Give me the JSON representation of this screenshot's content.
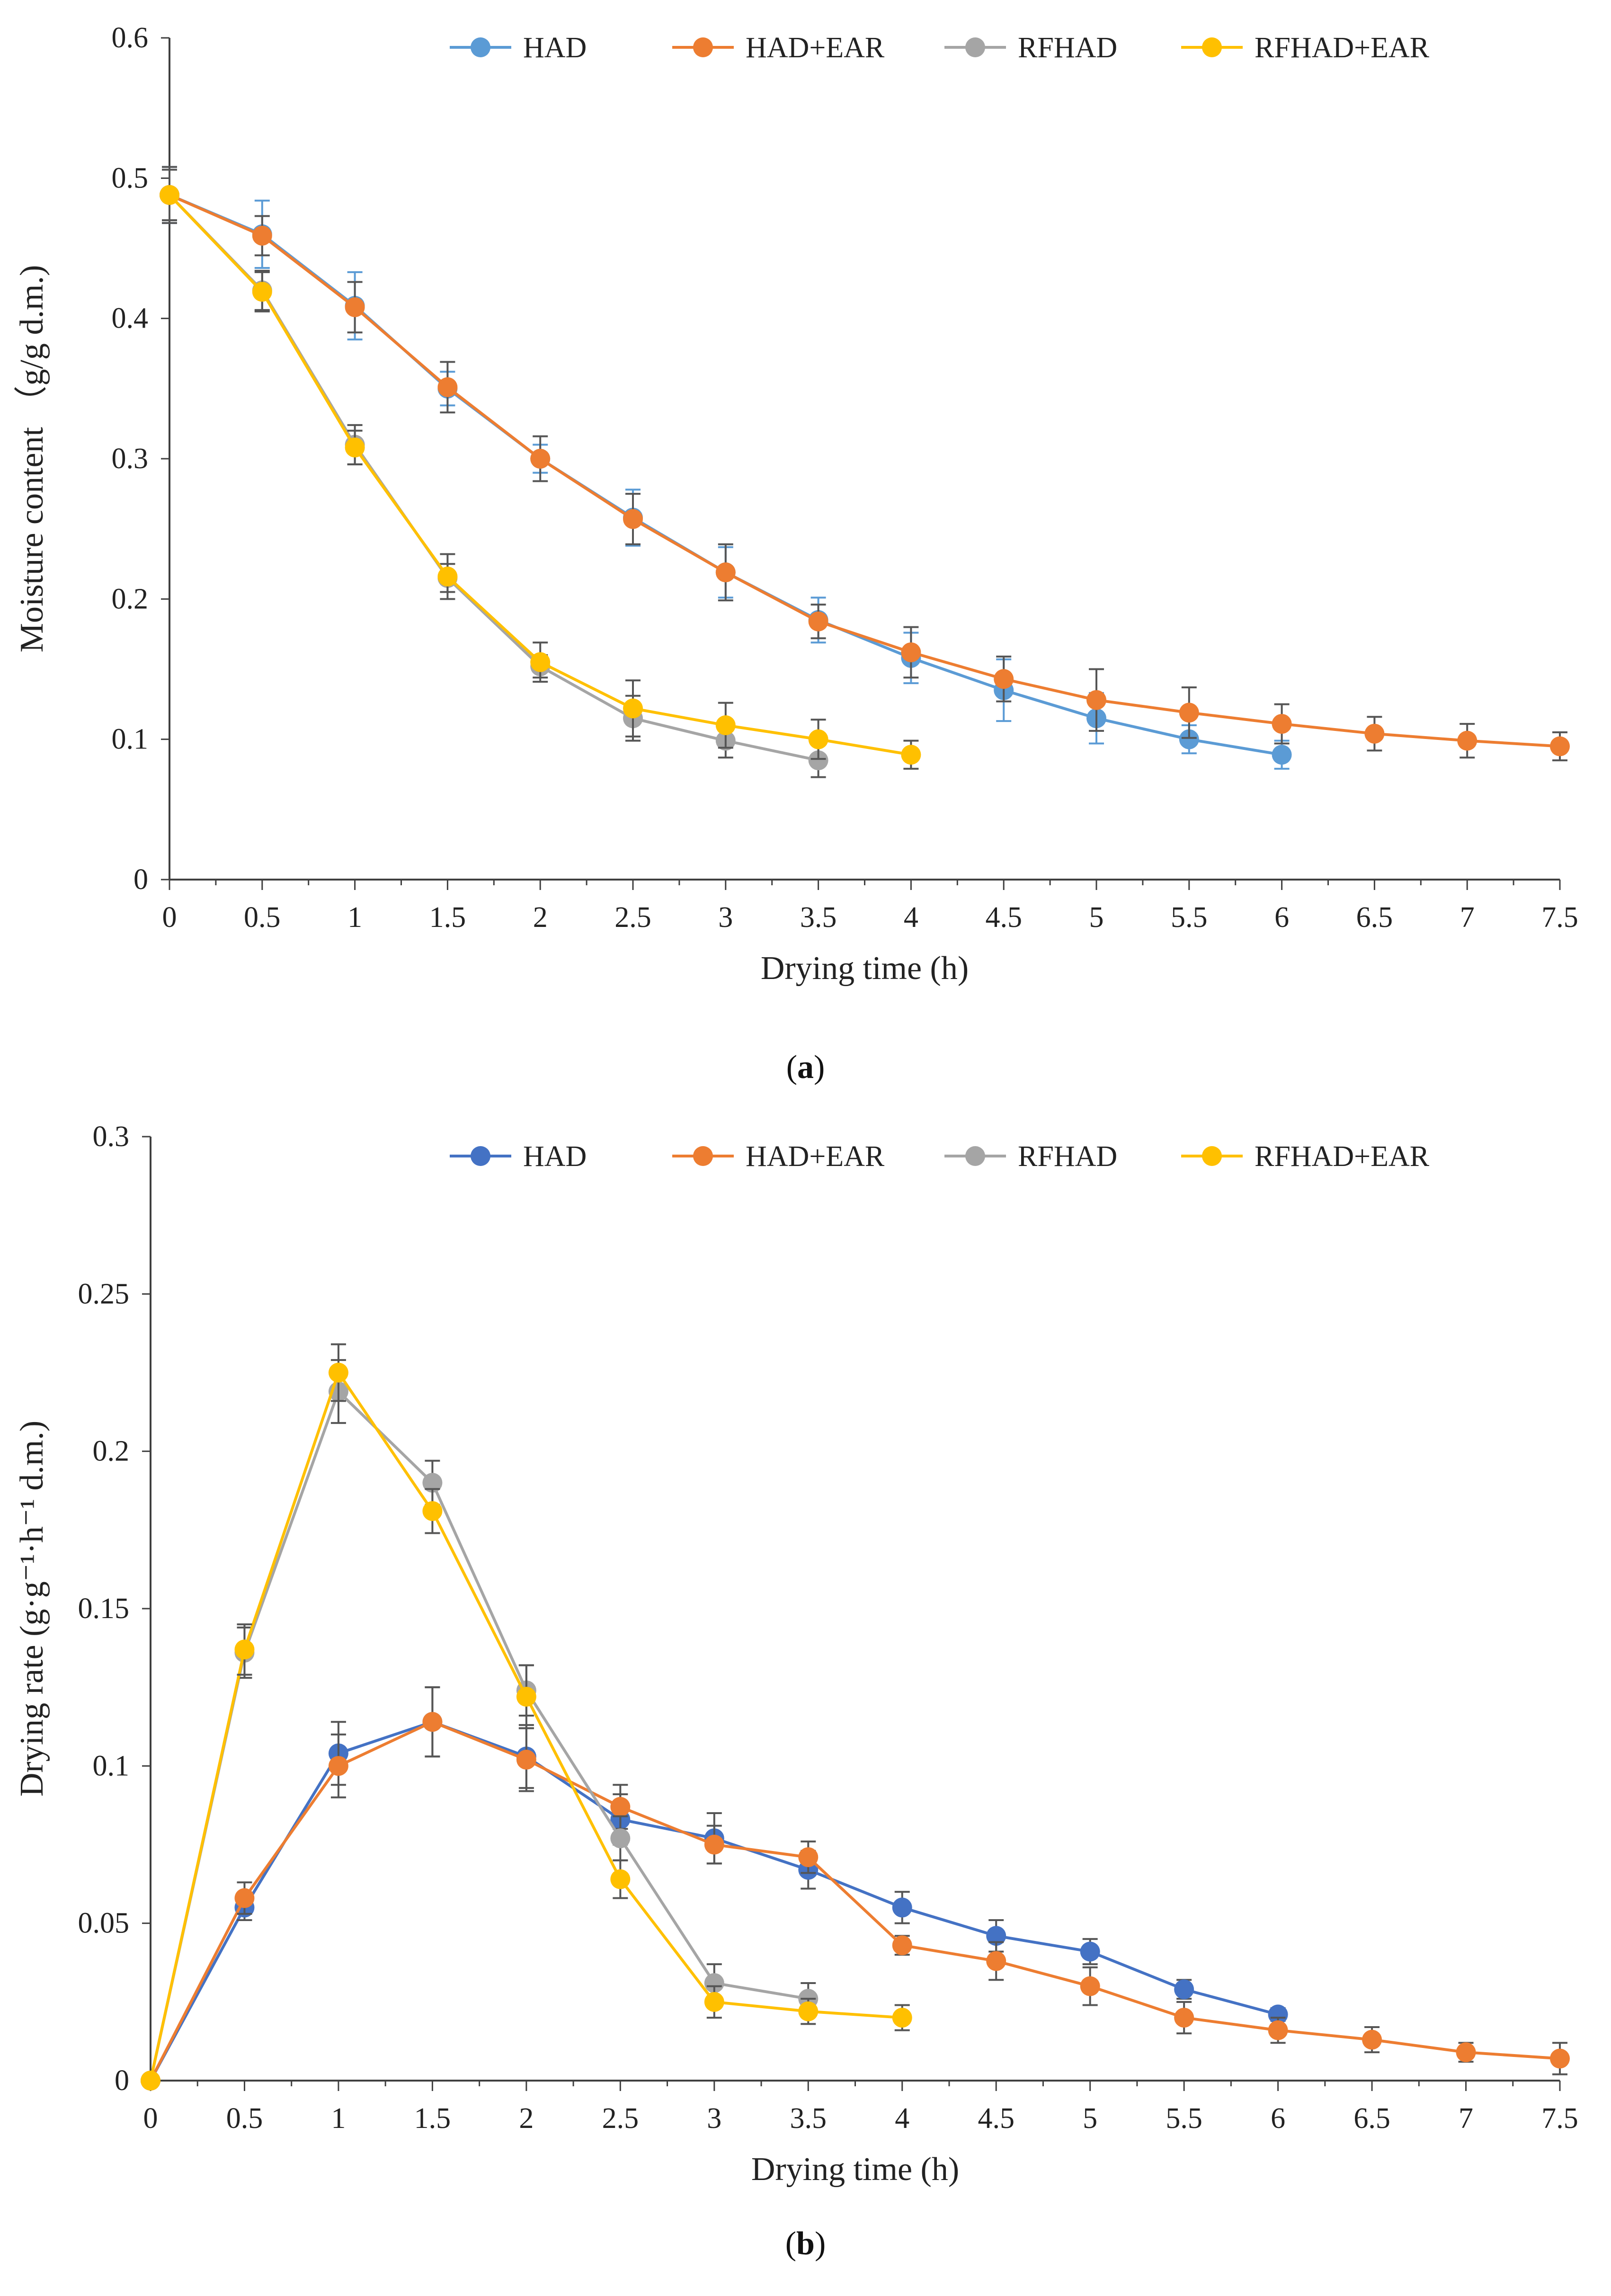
{
  "chart_data": [
    {
      "type": "line",
      "panel": "a",
      "caption": "a",
      "xlabel": "Drying time (h)",
      "ylabel": "Moisture content （g/g d.m.)",
      "xlim": [
        0,
        7.5
      ],
      "ylim": [
        0,
        0.6
      ],
      "xticks": [
        "0",
        "0.5",
        "1",
        "1.5",
        "2",
        "2.5",
        "3",
        "3.5",
        "4",
        "4.5",
        "5",
        "5.5",
        "6",
        "6.5",
        "7",
        "7.5"
      ],
      "yticks": [
        "0",
        "0.1",
        "0.2",
        "0.3",
        "0.4",
        "0.5",
        "0.6"
      ],
      "legend_position": "top-right",
      "series": [
        {
          "name": "HAD",
          "color": "#5b9bd5",
          "x": [
            0,
            0.5,
            1,
            1.5,
            2,
            2.5,
            3,
            3.5,
            4,
            4.5,
            5,
            5.5,
            6
          ],
          "y": [
            0.488,
            0.46,
            0.409,
            0.35,
            0.3,
            0.258,
            0.219,
            0.185,
            0.158,
            0.135,
            0.115,
            0.1,
            0.089
          ],
          "err": [
            0.02,
            0.024,
            0.024,
            0.012,
            0.01,
            0.02,
            0.018,
            0.016,
            0.018,
            0.022,
            0.018,
            0.01,
            0.01
          ]
        },
        {
          "name": "HAD+EAR",
          "color": "#ed7d31",
          "x": [
            0,
            0.5,
            1,
            1.5,
            2,
            2.5,
            3,
            3.5,
            4,
            4.5,
            5,
            5.5,
            6,
            6.5,
            7,
            7.5
          ],
          "y": [
            0.488,
            0.459,
            0.408,
            0.351,
            0.3,
            0.257,
            0.219,
            0.184,
            0.162,
            0.143,
            0.128,
            0.119,
            0.111,
            0.104,
            0.099,
            0.095
          ],
          "err": [
            0.018,
            0.014,
            0.018,
            0.018,
            0.016,
            0.018,
            0.02,
            0.012,
            0.018,
            0.016,
            0.022,
            0.018,
            0.014,
            0.012,
            0.012,
            0.01
          ]
        },
        {
          "name": "RFHAD",
          "color": "#a5a5a5",
          "x": [
            0,
            0.5,
            1,
            1.5,
            2,
            2.5,
            3,
            3.5
          ],
          "y": [
            0.488,
            0.42,
            0.31,
            0.215,
            0.152,
            0.115,
            0.099,
            0.085
          ],
          "err": [
            0.02,
            0.014,
            0.014,
            0.01,
            0.008,
            0.016,
            0.012,
            0.012
          ]
        },
        {
          "name": "RFHAD+EAR",
          "color": "#ffc000",
          "x": [
            0,
            0.5,
            1,
            1.5,
            2,
            2.5,
            3,
            3.5,
            4
          ],
          "y": [
            0.488,
            0.419,
            0.308,
            0.216,
            0.155,
            0.122,
            0.11,
            0.1,
            0.089
          ],
          "err": [
            0.018,
            0.014,
            0.012,
            0.016,
            0.014,
            0.02,
            0.016,
            0.014,
            0.01
          ]
        }
      ]
    },
    {
      "type": "line",
      "panel": "b",
      "caption": "b",
      "xlabel": "Drying time (h)",
      "ylabel": "Drying rate (g·g⁻¹·h⁻¹ d.m.)",
      "xlim": [
        0,
        7.5
      ],
      "ylim": [
        0,
        0.3
      ],
      "xticks": [
        "0",
        "0.5",
        "1",
        "1.5",
        "2",
        "2.5",
        "3",
        "3.5",
        "4",
        "4.5",
        "5",
        "5.5",
        "6",
        "6.5",
        "7",
        "7.5"
      ],
      "yticks": [
        "0",
        "0.05",
        "0.1",
        "0.15",
        "0.2",
        "0.25",
        "0.3"
      ],
      "legend_position": "top-right",
      "series": [
        {
          "name": "HAD",
          "color": "#4472c4",
          "x": [
            0,
            0.5,
            1,
            1.5,
            2,
            2.5,
            3,
            3.5,
            4,
            4.5,
            5,
            5.5,
            6
          ],
          "y": [
            0,
            0.055,
            0.104,
            0.114,
            0.103,
            0.083,
            0.077,
            0.067,
            0.055,
            0.046,
            0.041,
            0.029,
            0.021
          ],
          "err": [
            0,
            0.004,
            0.01,
            0.011,
            0.01,
            0.008,
            0.008,
            0.006,
            0.005,
            0.005,
            0.004,
            0.003,
            0.002
          ]
        },
        {
          "name": "HAD+EAR",
          "color": "#ed7d31",
          "x": [
            0,
            0.5,
            1,
            1.5,
            2,
            2.5,
            3,
            3.5,
            4,
            4.5,
            5,
            5.5,
            6,
            6.5,
            7,
            7.5
          ],
          "y": [
            0,
            0.058,
            0.1,
            0.114,
            0.102,
            0.087,
            0.075,
            0.071,
            0.043,
            0.038,
            0.03,
            0.02,
            0.016,
            0.013,
            0.009,
            0.007
          ],
          "err": [
            0,
            0.005,
            0.01,
            0.011,
            0.01,
            0.007,
            0.006,
            0.005,
            0.003,
            0.006,
            0.006,
            0.005,
            0.004,
            0.004,
            0.003,
            0.005
          ]
        },
        {
          "name": "RFHAD",
          "color": "#a5a5a5",
          "x": [
            0,
            0.5,
            1,
            1.5,
            2,
            2.5,
            3,
            3.5
          ],
          "y": [
            0,
            0.136,
            0.219,
            0.19,
            0.124,
            0.077,
            0.031,
            0.026
          ],
          "err": [
            0,
            0.008,
            0.01,
            0.007,
            0.008,
            0.007,
            0.006,
            0.005
          ]
        },
        {
          "name": "RFHAD+EAR",
          "color": "#ffc000",
          "x": [
            0,
            0.5,
            1,
            1.5,
            2,
            2.5,
            3,
            3.5,
            4
          ],
          "y": [
            0,
            0.137,
            0.225,
            0.181,
            0.122,
            0.064,
            0.025,
            0.022,
            0.02
          ],
          "err": [
            0,
            0.008,
            0.009,
            0.007,
            0.01,
            0.006,
            0.005,
            0.004,
            0.004
          ]
        }
      ]
    }
  ]
}
